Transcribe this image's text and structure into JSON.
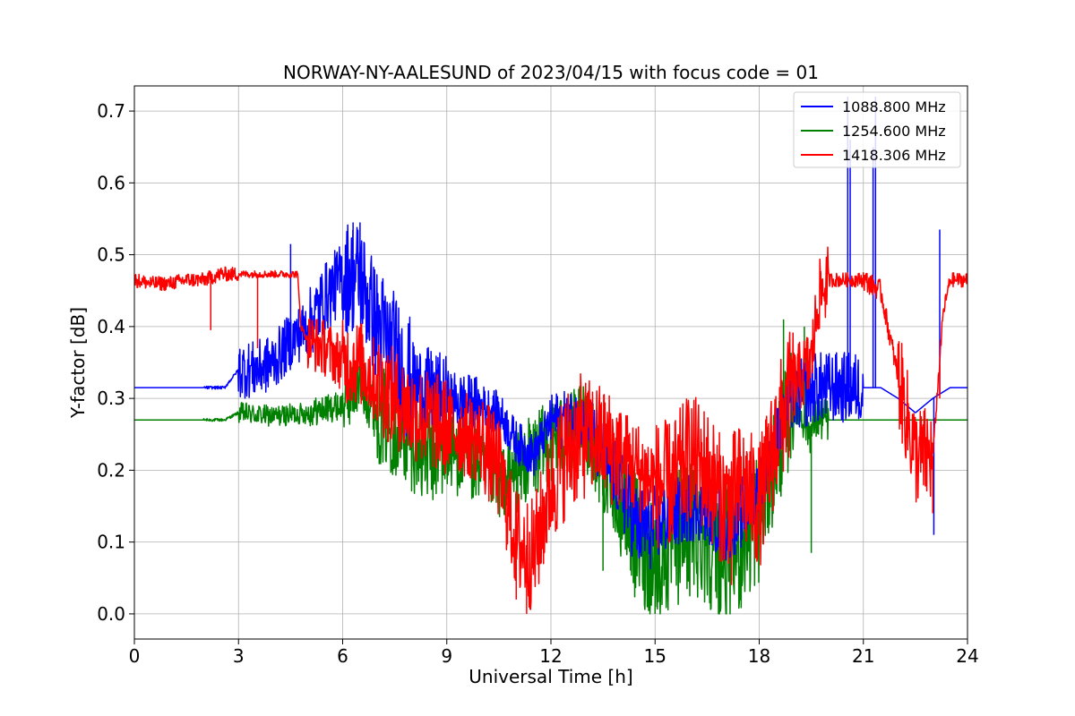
{
  "chart_data": {
    "type": "line",
    "title": "NORWAY-NY-AALESUND of 2023/04/15 with focus code = 01",
    "xlabel": "Universal Time [h]",
    "ylabel": "Y-factor [dB]",
    "xlim": [
      0,
      24
    ],
    "ylim": [
      -0.035,
      0.735
    ],
    "xticks": [
      0,
      3,
      6,
      9,
      12,
      15,
      18,
      21,
      24
    ],
    "xtick_labels": [
      "0",
      "3",
      "6",
      "9",
      "12",
      "15",
      "18",
      "21",
      "24"
    ],
    "yticks": [
      0.0,
      0.1,
      0.2,
      0.3,
      0.4,
      0.5,
      0.6,
      0.7
    ],
    "ytick_labels": [
      "0.0",
      "0.1",
      "0.2",
      "0.3",
      "0.4",
      "0.5",
      "0.6",
      "0.7"
    ],
    "grid": true,
    "legend_position": "top-right",
    "series": [
      {
        "name": "1088.800 MHz",
        "color": "#0000ff",
        "noise": [
          0.0,
          0.0,
          0.002,
          0.04,
          0.04,
          0.05,
          0.08,
          0.09,
          0.06,
          0.04,
          0.03,
          0.03,
          0.04,
          0.05,
          0.06,
          0.05,
          0.05,
          0.05,
          0.04,
          0.05,
          0.05,
          0.0,
          0.0,
          0.0
        ],
        "points": [
          [
            0,
            0.315
          ],
          [
            1.0,
            0.315
          ],
          [
            2.0,
            0.315
          ],
          [
            2.6,
            0.315
          ],
          [
            3.0,
            0.34
          ],
          [
            3.5,
            0.34
          ],
          [
            4.0,
            0.35
          ],
          [
            4.5,
            0.38
          ],
          [
            5.0,
            0.4
          ],
          [
            5.5,
            0.44
          ],
          [
            6.0,
            0.47
          ],
          [
            6.5,
            0.47
          ],
          [
            7.0,
            0.4
          ],
          [
            7.5,
            0.36
          ],
          [
            8.0,
            0.32
          ],
          [
            9.0,
            0.3
          ],
          [
            10.0,
            0.29
          ],
          [
            10.5,
            0.28
          ],
          [
            11.0,
            0.24
          ],
          [
            11.5,
            0.22
          ],
          [
            12.0,
            0.27
          ],
          [
            13.0,
            0.27
          ],
          [
            13.5,
            0.22
          ],
          [
            14.0,
            0.18
          ],
          [
            14.5,
            0.12
          ],
          [
            15.0,
            0.12
          ],
          [
            15.5,
            0.14
          ],
          [
            16.0,
            0.15
          ],
          [
            16.5,
            0.15
          ],
          [
            17.0,
            0.12
          ],
          [
            17.5,
            0.14
          ],
          [
            18.0,
            0.18
          ],
          [
            18.5,
            0.25
          ],
          [
            19.0,
            0.3
          ],
          [
            19.6,
            0.315
          ],
          [
            20.5,
            0.315
          ],
          [
            21.0,
            0.315
          ],
          [
            21.5,
            0.315
          ],
          [
            22.0,
            0.3
          ],
          [
            22.5,
            0.28
          ],
          [
            23.0,
            0.3
          ],
          [
            23.5,
            0.315
          ],
          [
            24.0,
            0.315
          ]
        ],
        "spikes": [
          [
            20.55,
            0.72
          ],
          [
            20.62,
            0.66
          ],
          [
            21.35,
            0.72
          ],
          [
            21.28,
            0.65
          ],
          [
            23.2,
            0.535
          ],
          [
            23.03,
            0.11
          ],
          [
            4.5,
            0.515
          ],
          [
            6.3,
            0.545
          ],
          [
            6.5,
            0.545
          ]
        ]
      },
      {
        "name": "1254.600 MHz",
        "color": "#008000",
        "noise": [
          0.0,
          0.0,
          0.002,
          0.015,
          0.015,
          0.02,
          0.04,
          0.07,
          0.07,
          0.06,
          0.05,
          0.06,
          0.06,
          0.06,
          0.09,
          0.1,
          0.1,
          0.1,
          0.08,
          0.03,
          0.0,
          0.0,
          0.0,
          0.0
        ],
        "points": [
          [
            0,
            0.27
          ],
          [
            1.0,
            0.27
          ],
          [
            2.0,
            0.27
          ],
          [
            2.6,
            0.27
          ],
          [
            3.0,
            0.28
          ],
          [
            4.0,
            0.275
          ],
          [
            5.0,
            0.28
          ],
          [
            6.0,
            0.29
          ],
          [
            6.5,
            0.32
          ],
          [
            7.0,
            0.28
          ],
          [
            7.5,
            0.26
          ],
          [
            8.0,
            0.24
          ],
          [
            8.5,
            0.22
          ],
          [
            9.0,
            0.23
          ],
          [
            10.0,
            0.21
          ],
          [
            10.5,
            0.18
          ],
          [
            11.0,
            0.2
          ],
          [
            11.5,
            0.22
          ],
          [
            12.0,
            0.24
          ],
          [
            12.5,
            0.25
          ],
          [
            13.0,
            0.26
          ],
          [
            13.5,
            0.2
          ],
          [
            14.0,
            0.16
          ],
          [
            14.5,
            0.1
          ],
          [
            15.0,
            0.08
          ],
          [
            15.5,
            0.1
          ],
          [
            16.0,
            0.12
          ],
          [
            16.5,
            0.11
          ],
          [
            17.0,
            0.08
          ],
          [
            17.5,
            0.1
          ],
          [
            18.0,
            0.14
          ],
          [
            18.5,
            0.22
          ],
          [
            19.0,
            0.3
          ],
          [
            19.5,
            0.25
          ],
          [
            19.6,
            0.27
          ],
          [
            21.0,
            0.27
          ],
          [
            22.0,
            0.27
          ],
          [
            23.0,
            0.27
          ],
          [
            24.0,
            0.27
          ]
        ],
        "spikes": [
          [
            19.3,
            0.4
          ],
          [
            19.5,
            0.085
          ],
          [
            15.0,
            0.0
          ],
          [
            13.5,
            0.06
          ],
          [
            18.7,
            0.41
          ]
        ]
      },
      {
        "name": "1418.306 MHz",
        "color": "#ff0000",
        "noise": [
          0.01,
          0.01,
          0.01,
          0.005,
          0.005,
          0.04,
          0.06,
          0.07,
          0.07,
          0.06,
          0.07,
          0.08,
          0.09,
          0.08,
          0.07,
          0.09,
          0.09,
          0.09,
          0.09,
          0.05,
          0.01,
          0.015,
          0.07,
          0.01
        ],
        "points": [
          [
            0,
            0.465
          ],
          [
            0.5,
            0.46
          ],
          [
            1.0,
            0.46
          ],
          [
            1.5,
            0.465
          ],
          [
            2.0,
            0.465
          ],
          [
            2.5,
            0.473
          ],
          [
            3.5,
            0.473
          ],
          [
            4.7,
            0.473
          ],
          [
            4.8,
            0.4
          ],
          [
            5.0,
            0.38
          ],
          [
            5.5,
            0.37
          ],
          [
            6.0,
            0.35
          ],
          [
            6.5,
            0.35
          ],
          [
            7.0,
            0.32
          ],
          [
            7.5,
            0.3
          ],
          [
            8.0,
            0.28
          ],
          [
            9.0,
            0.26
          ],
          [
            9.5,
            0.25
          ],
          [
            10.0,
            0.24
          ],
          [
            10.5,
            0.2
          ],
          [
            11.0,
            0.1
          ],
          [
            11.5,
            0.08
          ],
          [
            12.0,
            0.18
          ],
          [
            12.5,
            0.23
          ],
          [
            13.0,
            0.25
          ],
          [
            13.5,
            0.24
          ],
          [
            14.0,
            0.22
          ],
          [
            14.5,
            0.2
          ],
          [
            15.0,
            0.18
          ],
          [
            15.5,
            0.18
          ],
          [
            16.0,
            0.22
          ],
          [
            16.5,
            0.2
          ],
          [
            17.0,
            0.15
          ],
          [
            17.5,
            0.18
          ],
          [
            18.0,
            0.15
          ],
          [
            18.5,
            0.25
          ],
          [
            19.0,
            0.32
          ],
          [
            19.5,
            0.35
          ],
          [
            19.7,
            0.44
          ],
          [
            20.0,
            0.465
          ],
          [
            20.5,
            0.465
          ],
          [
            21.0,
            0.465
          ],
          [
            21.5,
            0.45
          ],
          [
            22.0,
            0.33
          ],
          [
            22.5,
            0.22
          ],
          [
            23.0,
            0.22
          ],
          [
            23.3,
            0.42
          ],
          [
            23.5,
            0.465
          ],
          [
            24.0,
            0.465
          ]
        ],
        "spikes": [
          [
            2.2,
            0.395
          ],
          [
            3.55,
            0.37
          ],
          [
            2.5,
            0.482
          ],
          [
            11.3,
            0.0
          ],
          [
            11.0,
            0.02
          ],
          [
            17.2,
            0.04
          ],
          [
            23.2,
            0.3
          ],
          [
            23.0,
            0.14
          ]
        ]
      }
    ]
  }
}
